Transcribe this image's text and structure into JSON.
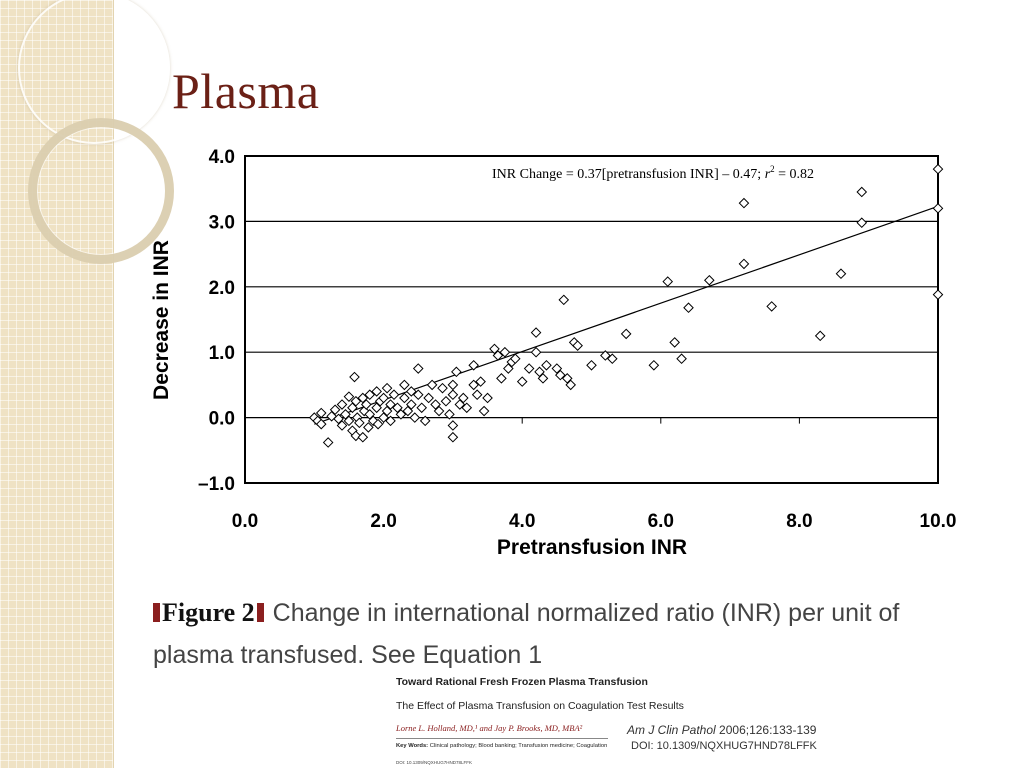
{
  "slide": {
    "title": "Plasma"
  },
  "chart_data": {
    "type": "scatter",
    "title": "",
    "xlabel": "Pretransfusion INR",
    "ylabel": "Decrease in INR",
    "xlim": [
      0,
      10
    ],
    "ylim": [
      -1,
      4
    ],
    "x_ticks": [
      "0.0",
      "2.0",
      "4.0",
      "6.0",
      "8.0",
      "10.0"
    ],
    "y_ticks": [
      "4.0",
      "3.0",
      "2.0",
      "1.0",
      "0.0",
      "–1.0"
    ],
    "grid": "horizontal",
    "marker": "diamond",
    "equation": "INR Change = 0.37[pretransfusion INR] – 0.47; r² = 0.82",
    "trendline": {
      "slope": 0.37,
      "intercept": -0.47,
      "x_range": [
        1.0,
        10.0
      ]
    },
    "points": [
      [
        1.0,
        0.0
      ],
      [
        1.05,
        -0.05
      ],
      [
        1.1,
        0.07
      ],
      [
        1.1,
        -0.1
      ],
      [
        1.2,
        -0.38
      ],
      [
        1.25,
        0.02
      ],
      [
        1.3,
        0.12
      ],
      [
        1.35,
        -0.02
      ],
      [
        1.4,
        0.2
      ],
      [
        1.4,
        -0.12
      ],
      [
        1.45,
        0.05
      ],
      [
        1.5,
        0.32
      ],
      [
        1.5,
        -0.05
      ],
      [
        1.55,
        -0.2
      ],
      [
        1.55,
        0.15
      ],
      [
        1.58,
        0.62
      ],
      [
        1.6,
        -0.28
      ],
      [
        1.6,
        0.25
      ],
      [
        1.62,
        0.0
      ],
      [
        1.65,
        -0.08
      ],
      [
        1.7,
        0.3
      ],
      [
        1.7,
        -0.3
      ],
      [
        1.72,
        0.1
      ],
      [
        1.75,
        0.2
      ],
      [
        1.78,
        -0.15
      ],
      [
        1.8,
        0.05
      ],
      [
        1.8,
        0.35
      ],
      [
        1.85,
        -0.05
      ],
      [
        1.9,
        0.4
      ],
      [
        1.9,
        0.15
      ],
      [
        1.92,
        -0.1
      ],
      [
        1.95,
        0.25
      ],
      [
        2.0,
        0.3
      ],
      [
        2.0,
        0.0
      ],
      [
        2.05,
        0.1
      ],
      [
        2.05,
        0.45
      ],
      [
        2.1,
        0.2
      ],
      [
        2.1,
        -0.05
      ],
      [
        2.15,
        0.35
      ],
      [
        2.2,
        0.15
      ],
      [
        2.25,
        0.05
      ],
      [
        2.3,
        0.5
      ],
      [
        2.3,
        0.3
      ],
      [
        2.35,
        0.1
      ],
      [
        2.4,
        0.4
      ],
      [
        2.4,
        0.2
      ],
      [
        2.45,
        0.0
      ],
      [
        2.5,
        0.35
      ],
      [
        2.5,
        0.75
      ],
      [
        2.55,
        0.15
      ],
      [
        2.6,
        -0.05
      ],
      [
        2.65,
        0.3
      ],
      [
        2.7,
        0.5
      ],
      [
        2.75,
        0.2
      ],
      [
        2.8,
        0.1
      ],
      [
        2.85,
        0.45
      ],
      [
        2.9,
        0.25
      ],
      [
        2.95,
        0.05
      ],
      [
        3.0,
        0.5
      ],
      [
        3.0,
        0.35
      ],
      [
        3.0,
        -0.12
      ],
      [
        3.0,
        -0.3
      ],
      [
        3.05,
        0.7
      ],
      [
        3.1,
        0.2
      ],
      [
        3.15,
        0.3
      ],
      [
        3.2,
        0.15
      ],
      [
        3.3,
        0.8
      ],
      [
        3.3,
        0.5
      ],
      [
        3.35,
        0.35
      ],
      [
        3.4,
        0.55
      ],
      [
        3.45,
        0.1
      ],
      [
        3.5,
        0.3
      ],
      [
        3.6,
        1.05
      ],
      [
        3.65,
        0.95
      ],
      [
        3.7,
        0.6
      ],
      [
        3.75,
        1.0
      ],
      [
        3.8,
        0.75
      ],
      [
        3.85,
        0.85
      ],
      [
        3.9,
        0.9
      ],
      [
        4.0,
        0.55
      ],
      [
        4.1,
        0.75
      ],
      [
        4.2,
        1.3
      ],
      [
        4.2,
        1.0
      ],
      [
        4.25,
        0.7
      ],
      [
        4.3,
        0.6
      ],
      [
        4.35,
        0.8
      ],
      [
        4.5,
        0.75
      ],
      [
        4.55,
        0.65
      ],
      [
        4.6,
        1.8
      ],
      [
        4.65,
        0.6
      ],
      [
        4.7,
        0.5
      ],
      [
        4.75,
        1.15
      ],
      [
        4.8,
        1.1
      ],
      [
        5.0,
        0.8
      ],
      [
        5.2,
        0.95
      ],
      [
        5.3,
        0.9
      ],
      [
        5.5,
        1.28
      ],
      [
        5.9,
        0.8
      ],
      [
        6.1,
        2.08
      ],
      [
        6.2,
        1.15
      ],
      [
        6.3,
        0.9
      ],
      [
        6.4,
        1.68
      ],
      [
        6.7,
        2.1
      ],
      [
        7.2,
        3.28
      ],
      [
        7.2,
        2.35
      ],
      [
        7.6,
        1.7
      ],
      [
        8.3,
        1.25
      ],
      [
        8.6,
        2.2
      ],
      [
        8.9,
        3.45
      ],
      [
        8.9,
        2.98
      ],
      [
        10.0,
        3.8
      ],
      [
        10.0,
        3.2
      ],
      [
        10.0,
        1.88
      ]
    ]
  },
  "caption": {
    "figure_label": "Figure 2",
    "text": "Change in international normalized ratio (INR) per unit of plasma transfused. See Equation 1"
  },
  "reference": {
    "title": "Toward Rational Fresh Frozen Plasma Transfusion",
    "subtitle": "The Effect of Plasma Transfusion on Coagulation Test Results",
    "authors": "Lorne L. Holland, MD,¹ and Jay P. Brooks, MD, MBA²",
    "keywords_label": "Key Words:",
    "keywords": "Clinical pathology; Blood banking; Transfusion medicine; Coagulation",
    "small_doi": "DOI: 10.1309/NQXHUG7HND78LFFK",
    "journal_name": "Am J Clin Pathol",
    "journal_citation": "2006;126:133-139",
    "doi": "DOI: 10.1309/NQXHUG7HND78LFFK"
  }
}
